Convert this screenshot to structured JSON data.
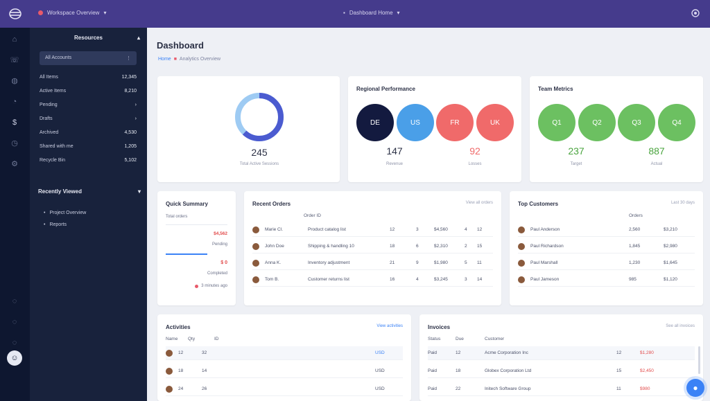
{
  "topbar": {
    "crumb": "Workspace Overview",
    "center": "Dashboard Home"
  },
  "colors": {
    "accent": "#453b8c",
    "blue": "#3b82f6",
    "red": "#f06a6a",
    "green": "#6cc061",
    "navy": "#131a3f"
  },
  "sidebar": {
    "header": "Resources",
    "select": "All Accounts",
    "rows": [
      {
        "label": "All Items",
        "value": "12,345"
      },
      {
        "label": "Active Items",
        "value": "8,210"
      },
      {
        "label": "Pending",
        "value": "›"
      },
      {
        "label": "Drafts",
        "value": "›"
      },
      {
        "label": "Archived",
        "value": "4,530"
      },
      {
        "label": "Shared with me",
        "value": "1,205"
      },
      {
        "label": "Recycle Bin",
        "value": "5,102"
      }
    ],
    "section": "Recently Viewed",
    "sub": [
      {
        "label": "Project Overview"
      },
      {
        "label": "Reports"
      }
    ]
  },
  "page": {
    "title": "Dashboard",
    "crumb_home": "Home",
    "crumb_rest": "Analytics Overview"
  },
  "card1": {
    "value": "245",
    "label": "Total Active Sessions",
    "progress": 0.62
  },
  "card2": {
    "title": "Regional Performance",
    "circles": [
      "DE",
      "US",
      "FR",
      "UK"
    ],
    "stats": [
      {
        "value": "147",
        "label": "Revenue"
      },
      {
        "value": "92",
        "label": "Losses"
      }
    ]
  },
  "card3": {
    "title": "Team Metrics",
    "circles": [
      "Q1",
      "Q2",
      "Q3",
      "Q4"
    ],
    "stats": [
      {
        "value": "237",
        "label": "Target"
      },
      {
        "value": "887",
        "label": "Actual"
      }
    ]
  },
  "card4": {
    "title": "Quick Summary",
    "rows": [
      {
        "label": "Total orders",
        "value": ""
      },
      {
        "label": "",
        "value": "$4,562"
      },
      {
        "label": "",
        "value": "Pending"
      },
      {
        "label": "",
        "value": "$ 0"
      },
      {
        "label": "",
        "value": "Completed"
      },
      {
        "label": "",
        "value": "3 minutes ago"
      }
    ]
  },
  "card5": {
    "title": "Recent Orders",
    "link": "View all orders",
    "hdr": "Order ID",
    "rows": [
      {
        "name": "Marie Cl.",
        "desc": "Product catalog list",
        "a": "12",
        "b": "3",
        "c": "$4,560",
        "d": "4",
        "e": "12"
      },
      {
        "name": "John Doe",
        "desc": "Shipping & handling 10",
        "a": "18",
        "b": "6",
        "c": "$2,310",
        "d": "2",
        "e": "15"
      },
      {
        "name": "Anna K.",
        "desc": "Inventory adjustment",
        "a": "21",
        "b": "9",
        "c": "$1,980",
        "d": "5",
        "e": "11"
      },
      {
        "name": "Tom B.",
        "desc": "Customer returns list",
        "a": "16",
        "b": "4",
        "c": "$3,245",
        "d": "3",
        "e": "14"
      }
    ]
  },
  "card6": {
    "title": "Top Customers",
    "link": "Last 30 days",
    "hdr": "Orders",
    "rows": [
      {
        "name": "Paul Anderson",
        "a": "2,560",
        "b": "$3,210"
      },
      {
        "name": "Paul Richardson",
        "a": "1,845",
        "b": "$2,980"
      },
      {
        "name": "Paul Marshall",
        "a": "1,230",
        "b": "$1,645"
      },
      {
        "name": "Paul Jameson",
        "a": "985",
        "b": "$1,120"
      }
    ]
  },
  "card7": {
    "title": "Activities",
    "link": "View activities",
    "cols": [
      "Name",
      "Qty",
      "ID"
    ],
    "rows": [
      {
        "a": "12",
        "b": "32",
        "c": "USD"
      },
      {
        "a": "18",
        "b": "14",
        "c": "USD"
      },
      {
        "a": "24",
        "b": "26",
        "c": "USD"
      }
    ]
  },
  "card8": {
    "title": "Invoices",
    "link": "See all invoices",
    "cols": [
      "Status",
      "Due",
      "Customer"
    ],
    "rows": [
      {
        "s": "Paid",
        "d": "12",
        "c": "Acme Corporation Inc",
        "x": "12",
        "v": "$1,280"
      },
      {
        "s": "Paid",
        "d": "18",
        "c": "Globex Corporation Ltd",
        "x": "15",
        "v": "$2,450"
      },
      {
        "s": "Paid",
        "d": "22",
        "c": "Initech Software Group",
        "x": "11",
        "v": "$980"
      }
    ]
  }
}
